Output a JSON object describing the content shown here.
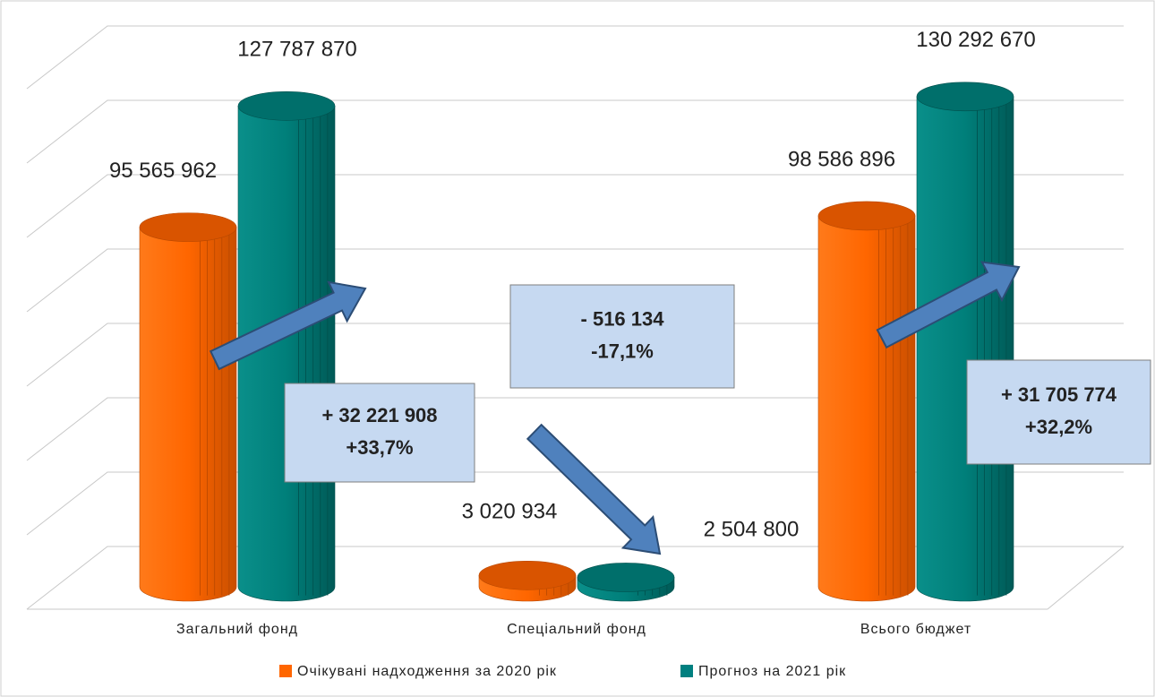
{
  "chart_data": {
    "type": "bar3d",
    "categories": [
      "Загальний фонд",
      "Спеціальний фонд",
      "Всього бюджет"
    ],
    "series": [
      {
        "name": "Очікувані надходження за 2020 рік",
        "color": "#ff6600",
        "values": [
          95565962,
          3020934,
          98586896
        ],
        "value_labels": [
          "95 565 962",
          "3 020 934",
          "98 586 896"
        ]
      },
      {
        "name": "Прогноз на 2021 рік",
        "color": "#008080",
        "values": [
          127787870,
          2504800,
          130292670
        ],
        "value_labels": [
          "127 787 870",
          "2 504 800",
          "130 292 670"
        ]
      }
    ],
    "ylim": [
      0,
      140000000
    ],
    "yticks": [
      0,
      20000000,
      40000000,
      60000000,
      80000000,
      100000000,
      120000000,
      140000000
    ],
    "grid": true,
    "legend": "bottom",
    "annotations": [
      {
        "lines": [
          "+ 32 221 908",
          "+33,7%"
        ]
      },
      {
        "lines": [
          "- 516 134",
          "-17,1%"
        ]
      },
      {
        "lines": [
          "+ 31 705 774",
          "+32,2%"
        ]
      }
    ]
  }
}
